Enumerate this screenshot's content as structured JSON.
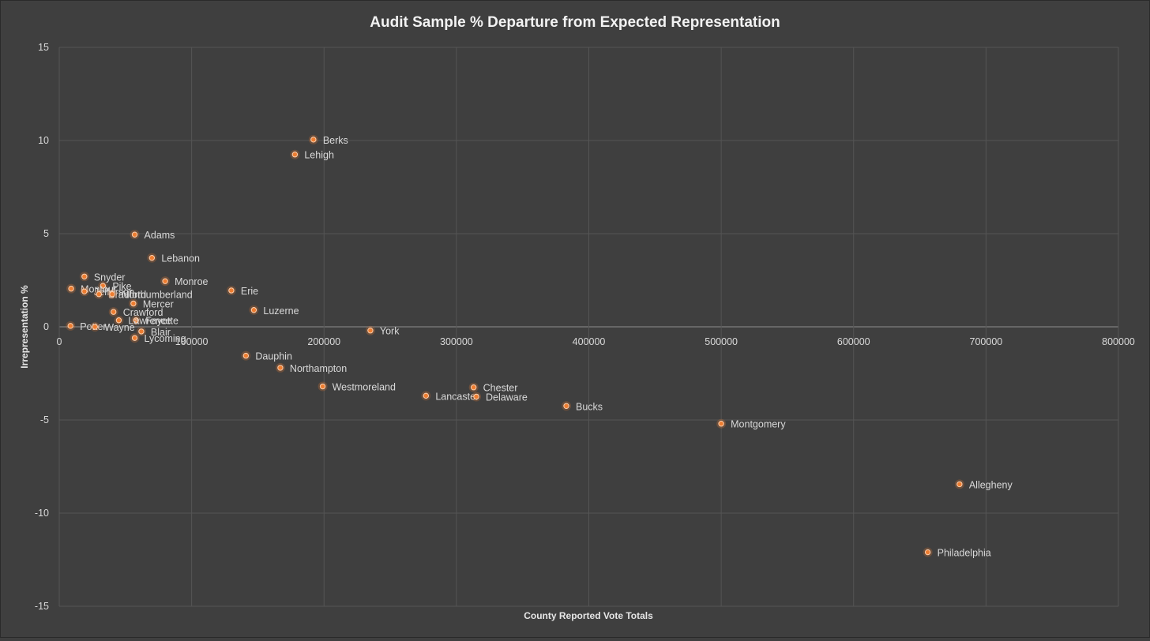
{
  "chart_data": {
    "type": "scatter",
    "title": "Audit Sample % Departure from Expected Representation",
    "xlabel": "County Reported Vote Totals",
    "ylabel": "Irrepresentation %",
    "xlim": [
      0,
      800000
    ],
    "ylim": [
      -15,
      15
    ],
    "x_ticks": [
      "0",
      "100000",
      "200000",
      "300000",
      "400000",
      "500000",
      "600000",
      "700000",
      "800000"
    ],
    "y_ticks": [
      "15",
      "10",
      "5",
      "0",
      "-5",
      "-10",
      "-15"
    ],
    "x_tick_values": [
      0,
      100000,
      200000,
      300000,
      400000,
      500000,
      600000,
      700000,
      800000
    ],
    "y_tick_values": [
      15,
      10,
      5,
      0,
      -5,
      -10,
      -15
    ],
    "grid": true,
    "marker_color": "#ed7d31",
    "points": [
      {
        "label": "Berks",
        "x": 192000,
        "y": 10.05
      },
      {
        "label": "Lehigh",
        "x": 178000,
        "y": 9.25
      },
      {
        "label": "Adams",
        "x": 57000,
        "y": 4.95
      },
      {
        "label": "Lebanon",
        "x": 70000,
        "y": 3.7
      },
      {
        "label": "Snyder",
        "x": 19000,
        "y": 2.7
      },
      {
        "label": "Monroe",
        "x": 80000,
        "y": 2.45
      },
      {
        "label": "Pike",
        "x": 33000,
        "y": 2.2
      },
      {
        "label": "Montour",
        "x": 9000,
        "y": 2.05
      },
      {
        "label": "Erie",
        "x": 130000,
        "y": 1.95
      },
      {
        "label": "Jefferson",
        "x": 19000,
        "y": 1.9
      },
      {
        "label": "Bradford",
        "x": 30000,
        "y": 1.75
      },
      {
        "label": "Northumberland",
        "x": 40000,
        "y": 1.75
      },
      {
        "label": "Mercer",
        "x": 56000,
        "y": 1.25
      },
      {
        "label": "Luzerne",
        "x": 147000,
        "y": 0.9
      },
      {
        "label": "Crawford",
        "x": 41000,
        "y": 0.8
      },
      {
        "label": "Fayette",
        "x": 58000,
        "y": 0.35
      },
      {
        "label": "Lawrence",
        "x": 45000,
        "y": 0.35
      },
      {
        "label": "Potter",
        "x": 8500,
        "y": 0.05
      },
      {
        "label": "Wayne",
        "x": 27000,
        "y": 0.0
      },
      {
        "label": "York",
        "x": 235000,
        "y": -0.2
      },
      {
        "label": "Blair",
        "x": 62000,
        "y": -0.25
      },
      {
        "label": "Lycoming",
        "x": 57000,
        "y": -0.6
      },
      {
        "label": "Dauphin",
        "x": 141000,
        "y": -1.55
      },
      {
        "label": "Northampton",
        "x": 167000,
        "y": -2.2
      },
      {
        "label": "Westmoreland",
        "x": 199000,
        "y": -3.2
      },
      {
        "label": "Chester",
        "x": 313000,
        "y": -3.25
      },
      {
        "label": "Lancaster",
        "x": 277000,
        "y": -3.7
      },
      {
        "label": "Delaware",
        "x": 315000,
        "y": -3.75
      },
      {
        "label": "Bucks",
        "x": 383000,
        "y": -4.25
      },
      {
        "label": "Montgomery",
        "x": 500000,
        "y": -5.2
      },
      {
        "label": "Allegheny",
        "x": 680000,
        "y": -8.45
      },
      {
        "label": "Philadelphia",
        "x": 656000,
        "y": -12.1
      }
    ]
  }
}
